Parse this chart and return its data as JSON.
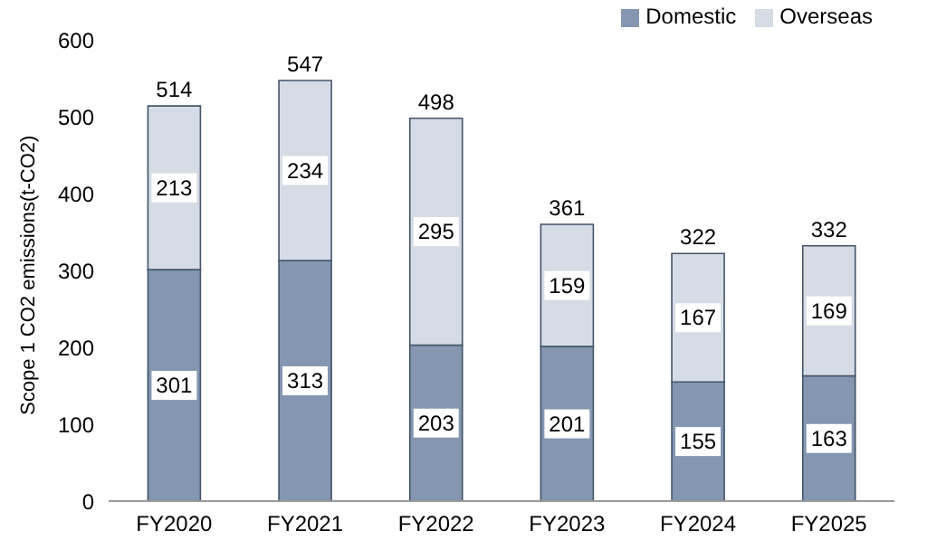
{
  "chart_data": {
    "type": "bar",
    "stacked": true,
    "ylabel": "Scope 1 CO2 emissions(t-CO2)",
    "categories": [
      "FY2020",
      "FY2021",
      "FY2022",
      "FY2023",
      "FY2024",
      "FY2025"
    ],
    "series": [
      {
        "name": "Domestic",
        "color": "#8496b0",
        "values": [
          301,
          313,
          203,
          201,
          155,
          163
        ]
      },
      {
        "name": "Overseas",
        "color": "#d6dce5",
        "values": [
          213,
          234,
          295,
          159,
          167,
          169
        ]
      }
    ],
    "totals": [
      "514",
      "547",
      "498",
      "361",
      "322",
      "332"
    ],
    "ylim": [
      0,
      600
    ],
    "yticks": [
      0,
      100,
      200,
      300,
      400,
      500,
      600
    ],
    "grid": false,
    "legend": "top right",
    "data_labels": true
  }
}
